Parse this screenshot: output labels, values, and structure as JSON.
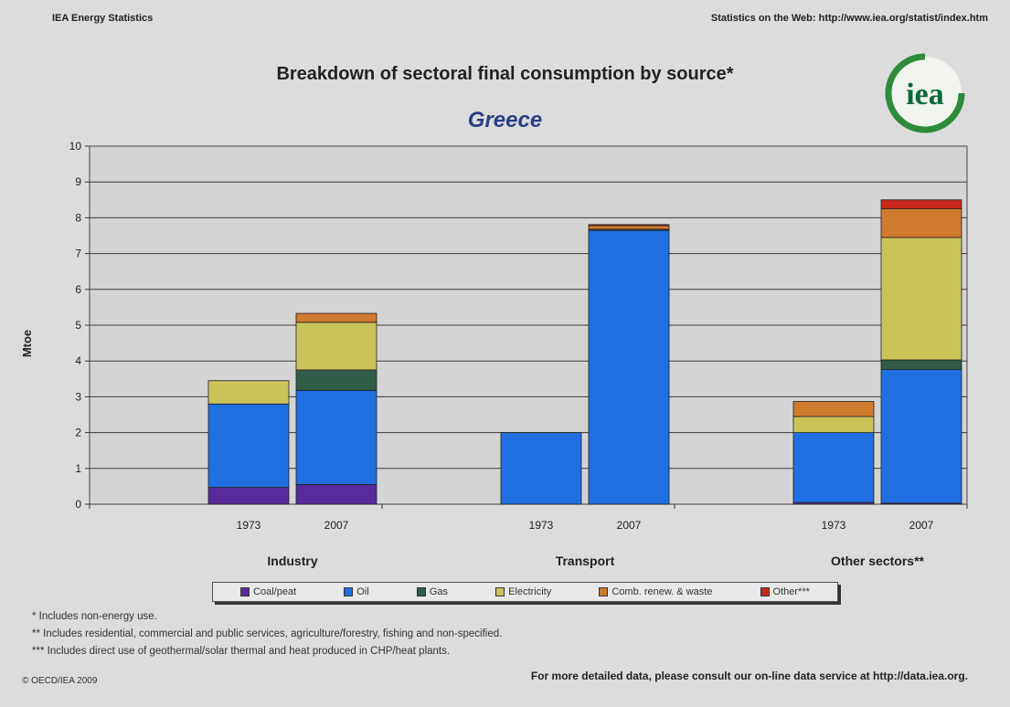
{
  "header": {
    "left": "IEA Energy Statistics",
    "right": "Statistics on the Web: http://www.iea.org/statist/index.htm"
  },
  "logo": {
    "text": "iea",
    "icon": "iea-logo-icon"
  },
  "chart_data": {
    "type": "bar",
    "stacked": true,
    "title": "Breakdown of sectoral final consumption by source*",
    "subtitle": "Greece",
    "ylabel": "Mtoe",
    "xlabel": "",
    "ylim": [
      0,
      10
    ],
    "yticks": [
      0,
      1,
      2,
      3,
      4,
      5,
      6,
      7,
      8,
      9,
      10
    ],
    "grid": true,
    "legend_position": "bottom",
    "groups": [
      {
        "name": "Industry",
        "categories": [
          "1973",
          "2007"
        ]
      },
      {
        "name": "Transport",
        "categories": [
          "1973",
          "2007"
        ]
      },
      {
        "name": "Other sectors**",
        "categories": [
          "1973",
          "2007"
        ]
      }
    ],
    "categories": [
      "1973",
      "2007",
      "1973",
      "2007",
      "1973",
      "2007"
    ],
    "series": [
      {
        "name": "Coal/peat",
        "color": "#5a2a9c",
        "values": [
          0.47,
          0.55,
          0.0,
          0.0,
          0.05,
          0.03
        ]
      },
      {
        "name": "Oil",
        "color": "#1f6fe0",
        "values": [
          2.33,
          2.63,
          2.0,
          7.65,
          1.95,
          3.73
        ]
      },
      {
        "name": "Gas",
        "color": "#2f5d48",
        "values": [
          0.0,
          0.57,
          0.0,
          0.03,
          0.0,
          0.27
        ]
      },
      {
        "name": "Electricity",
        "color": "#c9c35a",
        "values": [
          0.65,
          1.33,
          0.0,
          0.0,
          0.45,
          3.42
        ]
      },
      {
        "name": "Comb. renew. & waste",
        "color": "#d07a2e",
        "values": [
          0.0,
          0.25,
          0.0,
          0.1,
          0.42,
          0.8
        ]
      },
      {
        "name": "Other***",
        "color": "#c9281e",
        "values": [
          0.0,
          0.0,
          0.0,
          0.03,
          0.0,
          0.25
        ]
      }
    ]
  },
  "legend_items": [
    {
      "label": "Coal/peat",
      "color": "#5a2a9c"
    },
    {
      "label": "Oil",
      "color": "#1f6fe0"
    },
    {
      "label": "Gas",
      "color": "#2f5d48"
    },
    {
      "label": "Electricity",
      "color": "#c9c35a"
    },
    {
      "label": "Comb. renew. & waste",
      "color": "#d07a2e"
    },
    {
      "label": "Other***",
      "color": "#c9281e"
    }
  ],
  "footnotes": {
    "fn1": "*  Includes non-energy use.",
    "fn2": "**  Includes residential, commercial and public services, agriculture/forestry, fishing and non-specified.",
    "fn3": "***  Includes direct use of geothermal/solar thermal and heat produced in CHP/heat plants."
  },
  "footer": {
    "copyright": "© OECD/IEA 2009",
    "more": "For more detailed data, please consult our on-line data service at http://data.iea.org."
  }
}
